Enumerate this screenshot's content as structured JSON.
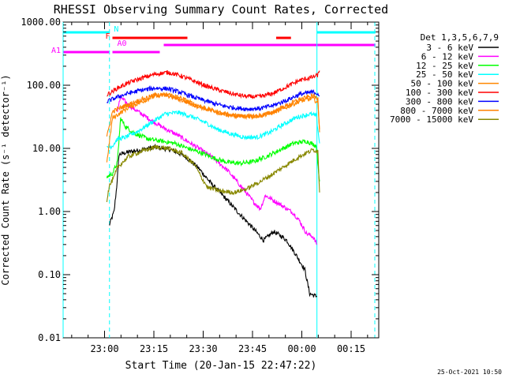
{
  "chart_data": {
    "type": "line",
    "title": "RHESSI Observing Summary Count Rates, Corrected",
    "xlabel": "Start Time (20-Jan-15 22:47:22)",
    "ylabel": "Corrected Count Rate (s⁻¹ detector⁻¹)",
    "y_scale": "log",
    "ylim": [
      0.01,
      1000
    ],
    "y_ticks": [
      {
        "value": 1000,
        "label": "1000.00"
      },
      {
        "value": 100,
        "label": "100.00"
      },
      {
        "value": 10,
        "label": "10.00"
      },
      {
        "value": 1,
        "label": "1.00"
      },
      {
        "value": 0.1,
        "label": "0.10"
      },
      {
        "value": 0.01,
        "label": "0.01"
      }
    ],
    "x_unit": "minutes after 22:47:22 UT",
    "xlim": [
      0,
      96
    ],
    "x_ticks": [
      {
        "value": 12.6,
        "label": "23:00"
      },
      {
        "value": 27.6,
        "label": "23:15"
      },
      {
        "value": 42.6,
        "label": "23:30"
      },
      {
        "value": 57.6,
        "label": "23:45"
      },
      {
        "value": 72.6,
        "label": "00:00"
      },
      {
        "value": 87.6,
        "label": "00:15"
      }
    ],
    "legend_title": "Det 1,3,5,6,7,9",
    "legend_position": "right",
    "grid": false,
    "footer": "25-Oct-2021 10:50",
    "series": [
      {
        "name": "3 - 6 keV",
        "color": "#000000",
        "x": [
          14,
          15.5,
          16.3,
          17,
          20,
          24,
          28,
          33,
          37,
          41,
          45,
          49,
          53,
          57,
          61,
          64,
          66,
          68,
          71,
          73.5,
          75,
          77.2
        ],
        "y": [
          0.6,
          1.0,
          2.5,
          8.0,
          8.8,
          9.5,
          10.5,
          9.5,
          7.5,
          5.0,
          2.8,
          1.7,
          1.0,
          0.6,
          0.35,
          0.48,
          0.42,
          0.35,
          0.2,
          0.12,
          0.05,
          0.045
        ]
      },
      {
        "name": "6 - 12 keV",
        "color": "#ff00ff",
        "x": [
          16.5,
          17.5,
          20,
          25,
          30,
          35,
          40,
          45,
          50,
          55,
          58,
          60,
          61.5,
          64,
          67,
          70,
          72,
          74,
          76,
          77.2
        ],
        "y": [
          40,
          65,
          48,
          32,
          22,
          16,
          11,
          7.5,
          4.5,
          2.2,
          1.4,
          1.1,
          1.8,
          1.5,
          1.2,
          0.95,
          0.7,
          0.45,
          0.4,
          0.3
        ]
      },
      {
        "name": "12 - 25 keV",
        "color": "#00ff00",
        "x": [
          13.3,
          15,
          16.5,
          17.5,
          19,
          22,
          26,
          30,
          34,
          38,
          42,
          46,
          50,
          54,
          58,
          62,
          66,
          70,
          74,
          77,
          78
        ],
        "y": [
          3.5,
          4.0,
          6.0,
          30,
          22,
          17,
          14,
          13,
          12,
          10,
          8.5,
          7.0,
          6.0,
          5.8,
          6.2,
          7.5,
          9.5,
          12,
          13,
          11,
          3.0
        ]
      },
      {
        "name": "25 - 50 keV",
        "color": "#00ffff",
        "x": [
          13.3,
          15,
          16.5,
          19,
          23,
          27,
          31,
          35,
          39,
          43,
          47,
          51,
          55,
          59,
          63,
          67,
          71,
          75,
          77,
          78
        ],
        "y": [
          10,
          11,
          14,
          15,
          19,
          26,
          35,
          37,
          32,
          26,
          20,
          17,
          15,
          15,
          18,
          24,
          31,
          35,
          33,
          12
        ]
      },
      {
        "name": "50 - 100 keV",
        "color": "#ff8800",
        "x": [
          13.3,
          15,
          16.5,
          20,
          24,
          28,
          32,
          36,
          40,
          44,
          48,
          52,
          56,
          60,
          64,
          68,
          72,
          76,
          77.5,
          78
        ],
        "y": [
          6,
          30,
          34,
          45,
          55,
          68,
          72,
          62,
          50,
          42,
          36,
          33,
          32,
          33,
          37,
          45,
          56,
          62,
          52,
          20
        ]
      },
      {
        "name": "100 - 300 keV",
        "color": "#ff0000",
        "x": [
          13.3,
          15,
          16.5,
          20,
          24,
          28,
          32,
          36,
          40,
          44,
          48,
          52,
          56,
          60,
          64,
          68,
          72,
          76,
          77.5,
          78
        ],
        "y": [
          70,
          80,
          90,
          110,
          130,
          150,
          160,
          140,
          115,
          95,
          82,
          72,
          66,
          66,
          75,
          95,
          120,
          135,
          145,
          170
        ]
      },
      {
        "name": "300 - 800 keV",
        "color": "#0000ff",
        "x": [
          13.3,
          15,
          16.5,
          20,
          24,
          28,
          32,
          36,
          40,
          44,
          48,
          52,
          56,
          60,
          64,
          68,
          72,
          76,
          77.5,
          78
        ],
        "y": [
          55,
          60,
          65,
          75,
          84,
          90,
          88,
          76,
          64,
          55,
          48,
          44,
          42,
          43,
          48,
          58,
          72,
          78,
          74,
          68
        ]
      },
      {
        "name": "800 - 7000 keV",
        "color": "#ff8000",
        "x": [
          13.3,
          15,
          16.5,
          20,
          24,
          28,
          32,
          36,
          40,
          44,
          48,
          52,
          56,
          60,
          64,
          68,
          72,
          76,
          77.5,
          78
        ],
        "y": [
          15,
          38,
          42,
          50,
          60,
          70,
          68,
          58,
          48,
          41,
          36,
          33,
          32,
          33,
          38,
          48,
          60,
          68,
          62,
          18
        ]
      },
      {
        "name": "7000 - 15000 keV",
        "color": "#888800",
        "x": [
          13.3,
          14,
          15.5,
          16.5,
          20,
          24,
          28,
          32,
          36,
          40,
          42,
          44,
          48,
          52,
          56,
          60,
          64,
          68,
          72,
          76,
          77.5,
          78
        ],
        "y": [
          1.5,
          2.5,
          3.5,
          5.0,
          7.5,
          9.0,
          10.5,
          10.0,
          8.5,
          5.5,
          3.5,
          2.4,
          2.1,
          2.0,
          2.3,
          3.0,
          4.0,
          5.5,
          7.5,
          9.5,
          9.0,
          2.0
        ]
      }
    ],
    "time_intervals": [
      {
        "label": "N",
        "color": "#00ffff",
        "x0": 0,
        "x1": 14,
        "row": 1
      },
      {
        "label": "",
        "color": "#00ffff",
        "x0": 77.2,
        "x1": 95,
        "row": 1
      },
      {
        "label": "F",
        "color": "#ff0000",
        "x0": 15,
        "x1": 37.8,
        "row": 2
      },
      {
        "label": "",
        "color": "#ff0000",
        "x0": 64.8,
        "x1": 69.3,
        "row": 2
      },
      {
        "label": "A0",
        "color": "#ff00ff",
        "x0": 30.6,
        "x1": 95,
        "row": 3
      },
      {
        "label": "A1",
        "color": "#ff00ff",
        "x0": 0,
        "x1": 14,
        "row": 4
      },
      {
        "label": "",
        "color": "#ff00ff",
        "x0": 15,
        "x1": 29.4,
        "row": 4
      }
    ],
    "vertical_markers": [
      {
        "x": 0,
        "color": "#00ffff",
        "style": "solid"
      },
      {
        "x": 14.1,
        "color": "#00ffff",
        "style": "dashed"
      },
      {
        "x": 77.2,
        "color": "#00ffff",
        "style": "solid"
      },
      {
        "x": 94.8,
        "color": "#00ffff",
        "style": "dashed"
      }
    ]
  }
}
